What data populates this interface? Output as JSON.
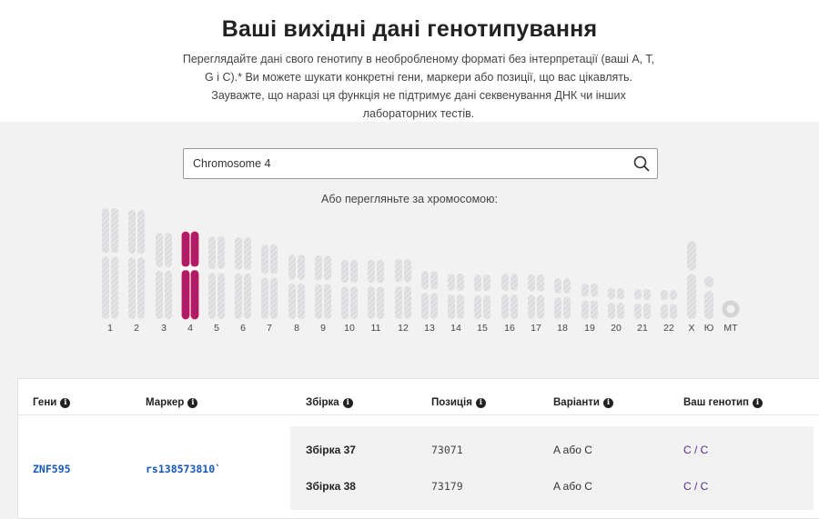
{
  "header": {
    "title": "Ваші вихідні дані генотипування",
    "intro": "Переглядайте дані свого генотипу в необробленому форматі без інтерпретації (ваші A, T, G і C).* Ви можете шукати конкретні гени, маркери або позиції, що вас цікавлять. Зауважте, що наразі ця функція не підтримує дані секвенування ДНК чи інших лабораторних тестів."
  },
  "search": {
    "value": "Chromosome 4",
    "icon": "search-icon"
  },
  "browse_label": "Або перегляньте за хромосомою:",
  "chromosomes": [
    {
      "label": "1",
      "selected": false
    },
    {
      "label": "2",
      "selected": false
    },
    {
      "label": "3",
      "selected": false
    },
    {
      "label": "4",
      "selected": true
    },
    {
      "label": "5",
      "selected": false
    },
    {
      "label": "6",
      "selected": false
    },
    {
      "label": "7",
      "selected": false
    },
    {
      "label": "8",
      "selected": false
    },
    {
      "label": "9",
      "selected": false
    },
    {
      "label": "10",
      "selected": false
    },
    {
      "label": "11",
      "selected": false
    },
    {
      "label": "12",
      "selected": false
    },
    {
      "label": "13",
      "selected": false
    },
    {
      "label": "14",
      "selected": false
    },
    {
      "label": "15",
      "selected": false
    },
    {
      "label": "16",
      "selected": false
    },
    {
      "label": "17",
      "selected": false
    },
    {
      "label": "18",
      "selected": false
    },
    {
      "label": "19",
      "selected": false
    },
    {
      "label": "20",
      "selected": false
    },
    {
      "label": "21",
      "selected": false
    },
    {
      "label": "22",
      "selected": false
    },
    {
      "label": "X",
      "selected": false
    },
    {
      "label": "Ю",
      "selected": false
    },
    {
      "label": "МТ",
      "selected": false
    }
  ],
  "colors": {
    "selected_a": "#c2185b",
    "selected_b": "#6a2c91",
    "chromosome": "#dcdcde",
    "link": "#1858b8",
    "genotype": "#5a2a8a"
  },
  "table": {
    "headers": {
      "genes": "Гени",
      "marker": "Маркер",
      "build": "Збірка",
      "position": "Позиція",
      "variants": "Варіанти",
      "genotype": "Ваш генотип"
    },
    "row": {
      "gene": "ZNF595",
      "marker": "rs138573810`",
      "builds": [
        {
          "build": "Збірка 37",
          "position": "73071",
          "variants": "A або C",
          "genotype": "C / C"
        },
        {
          "build": "Збірка 38",
          "position": "73179",
          "variants": "A або C",
          "genotype": "C / C"
        }
      ]
    }
  }
}
